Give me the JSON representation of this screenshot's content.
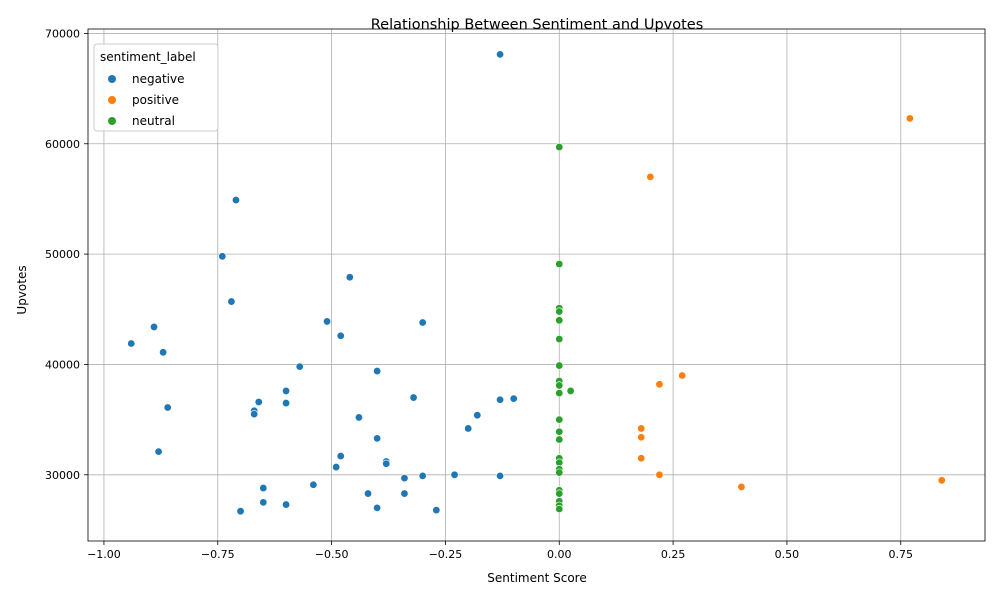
{
  "chart_data": {
    "type": "scatter",
    "title": "Relationship Between Sentiment and Upvotes",
    "xlabel": "Sentiment Score",
    "ylabel": "Upvotes",
    "xlim": [
      -1.035,
      0.935
    ],
    "ylim": [
      24000,
      70400
    ],
    "x_ticks": [
      -1.0,
      -0.75,
      -0.5,
      -0.25,
      0.0,
      0.25,
      0.5,
      0.75
    ],
    "x_tick_labels": [
      "−1.00",
      "−0.75",
      "−0.50",
      "−0.25",
      "0.00",
      "0.25",
      "0.50",
      "0.75"
    ],
    "y_ticks": [
      30000,
      40000,
      50000,
      60000,
      70000
    ],
    "y_tick_labels": [
      "30000",
      "40000",
      "50000",
      "60000",
      "70000"
    ],
    "grid": true,
    "legend": {
      "title": "sentiment_label",
      "placement": "top-left"
    },
    "series": [
      {
        "name": "negative",
        "color": "#1f77b4",
        "points": [
          [
            -0.13,
            68100
          ],
          [
            -0.71,
            54900
          ],
          [
            -0.74,
            49800
          ],
          [
            -0.46,
            47900
          ],
          [
            -0.72,
            45700
          ],
          [
            -0.51,
            43900
          ],
          [
            -0.3,
            43800
          ],
          [
            -0.89,
            43400
          ],
          [
            -0.48,
            42600
          ],
          [
            -0.94,
            41900
          ],
          [
            -0.87,
            41100
          ],
          [
            -0.57,
            39800
          ],
          [
            -0.4,
            39400
          ],
          [
            -0.6,
            37600
          ],
          [
            -0.32,
            37000
          ],
          [
            -0.13,
            36800
          ],
          [
            -0.1,
            36900
          ],
          [
            -0.66,
            36600
          ],
          [
            -0.6,
            36500
          ],
          [
            -0.86,
            36100
          ],
          [
            -0.67,
            35800
          ],
          [
            -0.67,
            35500
          ],
          [
            -0.44,
            35200
          ],
          [
            -0.18,
            35400
          ],
          [
            -0.2,
            34200
          ],
          [
            -0.4,
            33300
          ],
          [
            -0.88,
            32100
          ],
          [
            -0.48,
            31700
          ],
          [
            -0.38,
            31200
          ],
          [
            -0.38,
            31000
          ],
          [
            -0.49,
            30700
          ],
          [
            -0.23,
            30000
          ],
          [
            -0.3,
            29900
          ],
          [
            -0.34,
            29700
          ],
          [
            -0.13,
            29900
          ],
          [
            -0.54,
            29100
          ],
          [
            -0.65,
            28800
          ],
          [
            -0.42,
            28300
          ],
          [
            -0.34,
            28300
          ],
          [
            -0.65,
            27500
          ],
          [
            -0.6,
            27300
          ],
          [
            -0.4,
            27000
          ],
          [
            -0.7,
            26700
          ],
          [
            -0.27,
            26800
          ]
        ]
      },
      {
        "name": "positive",
        "color": "#ff7f0e",
        "points": [
          [
            0.77,
            62300
          ],
          [
            0.2,
            57000
          ],
          [
            0.27,
            39000
          ],
          [
            0.22,
            38200
          ],
          [
            0.18,
            34200
          ],
          [
            0.18,
            33400
          ],
          [
            0.18,
            31500
          ],
          [
            0.22,
            30000
          ],
          [
            0.84,
            29500
          ],
          [
            0.4,
            28900
          ]
        ]
      },
      {
        "name": "neutral",
        "color": "#2ca02c",
        "points": [
          [
            0.0,
            59700
          ],
          [
            0.0,
            49100
          ],
          [
            0.0,
            45100
          ],
          [
            0.0,
            44800
          ],
          [
            0.0,
            44000
          ],
          [
            0.0,
            42300
          ],
          [
            0.0,
            39900
          ],
          [
            0.0,
            38500
          ],
          [
            0.0,
            38100
          ],
          [
            0.025,
            37600
          ],
          [
            0.0,
            37400
          ],
          [
            0.0,
            35000
          ],
          [
            0.0,
            33900
          ],
          [
            0.0,
            33200
          ],
          [
            0.0,
            31500
          ],
          [
            0.0,
            31100
          ],
          [
            0.0,
            30500
          ],
          [
            0.0,
            30200
          ],
          [
            0.0,
            28600
          ],
          [
            0.0,
            28300
          ],
          [
            0.0,
            27600
          ],
          [
            0.0,
            27200
          ],
          [
            0.0,
            26900
          ]
        ]
      }
    ]
  }
}
